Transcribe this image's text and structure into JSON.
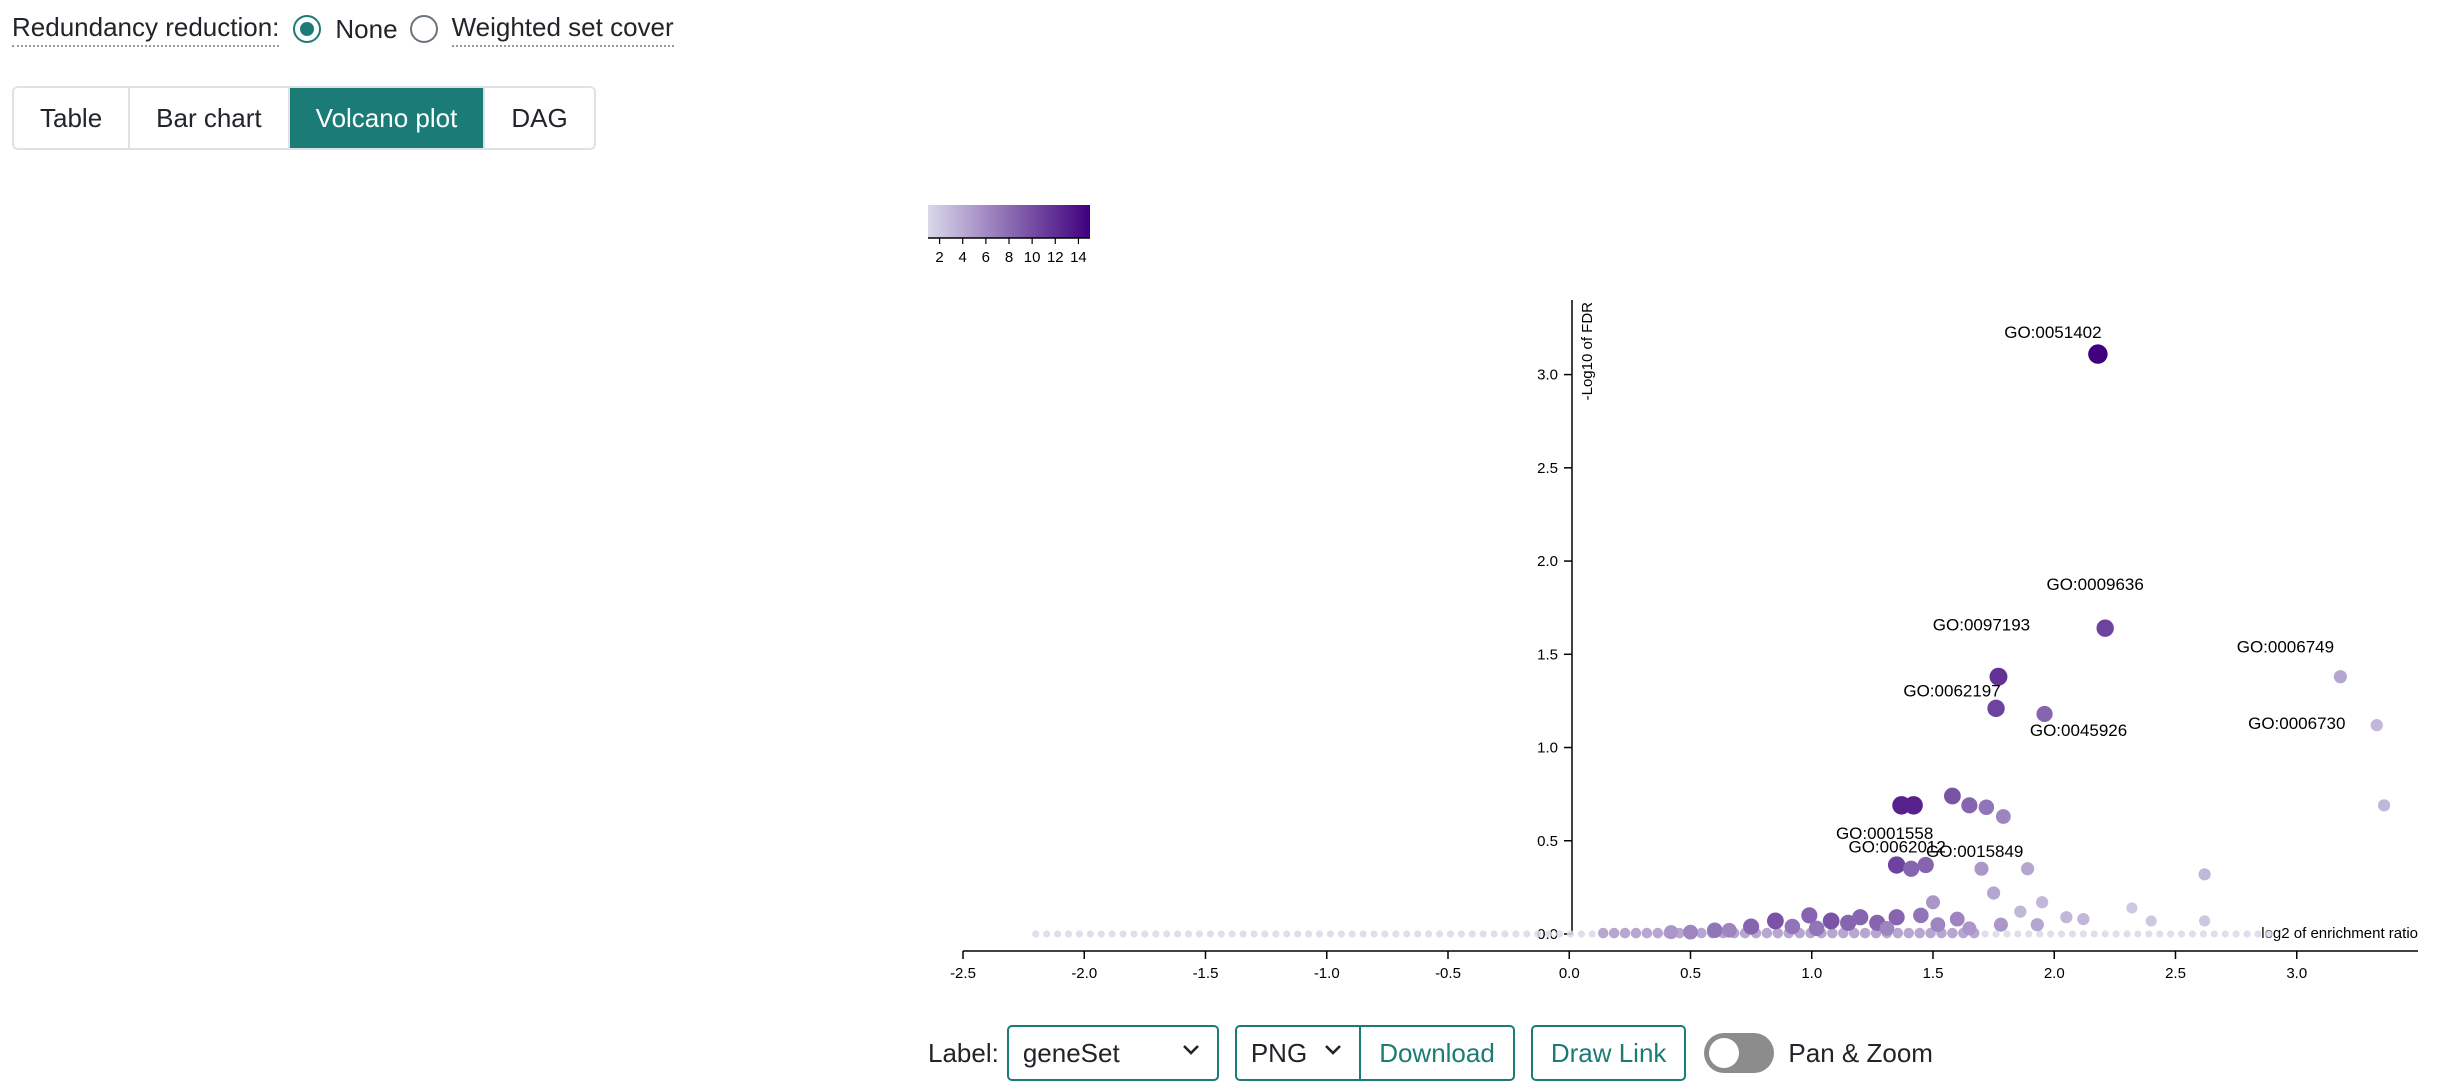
{
  "redundancy": {
    "label": "Redundancy reduction:",
    "options": [
      {
        "label": "None",
        "checked": true
      },
      {
        "label": "Weighted set cover",
        "checked": false
      }
    ]
  },
  "tabs": [
    {
      "label": "Table",
      "active": false
    },
    {
      "label": "Bar chart",
      "active": false
    },
    {
      "label": "Volcano plot",
      "active": true
    },
    {
      "label": "DAG",
      "active": false
    }
  ],
  "colors": {
    "accent": "#1b7c77",
    "color_scale_low": "#d9d8ea",
    "color_scale_high": "#3f007d"
  },
  "color_legend": {
    "ticks": [
      "2",
      "4",
      "6",
      "8",
      "10",
      "12",
      "14"
    ],
    "domain": [
      1,
      15
    ]
  },
  "controls": {
    "label_text": "Label:",
    "label_select_value": "geneSet",
    "format_value": "PNG",
    "download_label": "Download",
    "draw_link_label": "Draw Link",
    "pan_zoom_label": "Pan & Zoom",
    "pan_zoom_on": false
  },
  "chart_data": {
    "type": "scatter",
    "xlabel": "log2 of enrichment ratio",
    "ylabel": "-Log10 of FDR",
    "xlim": [
      -2.5,
      3.5
    ],
    "ylim": [
      0,
      3.4
    ],
    "xticks": [
      "-2.5",
      "-2.0",
      "-1.5",
      "-1.0",
      "-0.5",
      "0.0",
      "0.5",
      "1.0",
      "1.5",
      "2.0",
      "2.5",
      "3.0"
    ],
    "yticks": [
      "0.0",
      "0.5",
      "1.0",
      "1.5",
      "2.0",
      "2.5",
      "3.0"
    ],
    "labeled_points": [
      {
        "label": "GO:0051402",
        "x": 2.18,
        "y": 3.11,
        "size": 14
      },
      {
        "label": "GO:0009636",
        "x": 2.21,
        "y": 1.64,
        "size": 10
      },
      {
        "label": "GO:0097193",
        "x": 1.77,
        "y": 1.38,
        "size": 11
      },
      {
        "label": "GO:0006749",
        "x": 3.18,
        "y": 1.38,
        "size": 4
      },
      {
        "label": "GO:0062197",
        "x": 1.76,
        "y": 1.21,
        "size": 10
      },
      {
        "label": "GO:0045926",
        "x": 1.96,
        "y": 1.18,
        "size": 8
      },
      {
        "label": "GO:0006730",
        "x": 3.33,
        "y": 1.12,
        "size": 3
      },
      {
        "label": "GO:0001558",
        "x": 1.35,
        "y": 0.37,
        "size": 10
      },
      {
        "label": "GO:0062012",
        "x": 1.41,
        "y": 0.35,
        "size": 8
      },
      {
        "label": "GO:0015849",
        "x": 1.47,
        "y": 0.37,
        "size": 8
      }
    ],
    "points": [
      {
        "x": 3.36,
        "y": 0.69,
        "size": 3
      },
      {
        "x": 1.37,
        "y": 0.69,
        "size": 12
      },
      {
        "x": 1.42,
        "y": 0.69,
        "size": 12
      },
      {
        "x": 1.58,
        "y": 0.74,
        "size": 9
      },
      {
        "x": 1.65,
        "y": 0.69,
        "size": 8
      },
      {
        "x": 1.72,
        "y": 0.68,
        "size": 7
      },
      {
        "x": 1.79,
        "y": 0.63,
        "size": 6
      },
      {
        "x": 1.7,
        "y": 0.35,
        "size": 5
      },
      {
        "x": 1.89,
        "y": 0.35,
        "size": 4
      },
      {
        "x": 2.62,
        "y": 0.32,
        "size": 3
      },
      {
        "x": 1.75,
        "y": 0.22,
        "size": 4
      },
      {
        "x": 1.5,
        "y": 0.17,
        "size": 5
      },
      {
        "x": 1.95,
        "y": 0.17,
        "size": 3
      },
      {
        "x": 2.32,
        "y": 0.14,
        "size": 2
      },
      {
        "x": 1.86,
        "y": 0.12,
        "size": 3
      },
      {
        "x": 1.45,
        "y": 0.1,
        "size": 7
      },
      {
        "x": 0.99,
        "y": 0.1,
        "size": 8
      },
      {
        "x": 1.2,
        "y": 0.09,
        "size": 8
      },
      {
        "x": 1.35,
        "y": 0.09,
        "size": 8
      },
      {
        "x": 1.6,
        "y": 0.08,
        "size": 6
      },
      {
        "x": 2.05,
        "y": 0.09,
        "size": 3
      },
      {
        "x": 2.12,
        "y": 0.08,
        "size": 3
      },
      {
        "x": 2.4,
        "y": 0.07,
        "size": 2
      },
      {
        "x": 2.62,
        "y": 0.07,
        "size": 2
      },
      {
        "x": 0.85,
        "y": 0.07,
        "size": 9
      },
      {
        "x": 1.08,
        "y": 0.07,
        "size": 9
      },
      {
        "x": 1.15,
        "y": 0.06,
        "size": 8
      },
      {
        "x": 1.27,
        "y": 0.06,
        "size": 8
      },
      {
        "x": 1.52,
        "y": 0.05,
        "size": 6
      },
      {
        "x": 1.78,
        "y": 0.05,
        "size": 5
      },
      {
        "x": 1.93,
        "y": 0.05,
        "size": 4
      },
      {
        "x": 0.75,
        "y": 0.04,
        "size": 8
      },
      {
        "x": 0.92,
        "y": 0.04,
        "size": 7
      },
      {
        "x": 1.02,
        "y": 0.03,
        "size": 7
      },
      {
        "x": 1.31,
        "y": 0.03,
        "size": 6
      },
      {
        "x": 1.65,
        "y": 0.03,
        "size": 5
      },
      {
        "x": 0.6,
        "y": 0.02,
        "size": 7
      },
      {
        "x": 0.66,
        "y": 0.02,
        "size": 6
      },
      {
        "x": 0.5,
        "y": 0.01,
        "size": 6
      },
      {
        "x": 0.42,
        "y": 0.01,
        "size": 5
      }
    ]
  }
}
